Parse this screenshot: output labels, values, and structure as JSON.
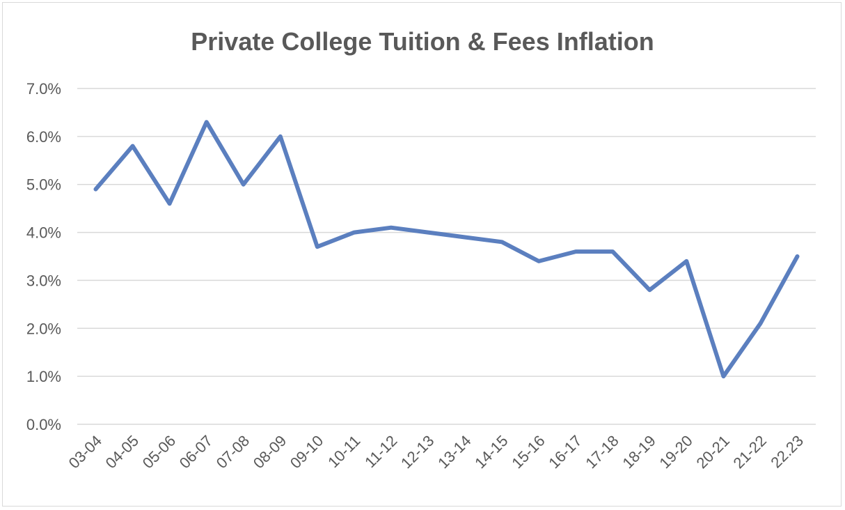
{
  "chart_data": {
    "type": "line",
    "title": "Private College Tuition & Fees Inflation",
    "xlabel": "",
    "ylabel": "",
    "categories": [
      "03-04",
      "04-05",
      "05-06",
      "06-07",
      "07-08",
      "08-09",
      "09-10",
      "10-11",
      "11-12",
      "12-13",
      "13-14",
      "14-15",
      "15-16",
      "16-17",
      "17-18",
      "18-19",
      "19-20",
      "20-21",
      "21-22",
      "22.23"
    ],
    "series": [
      {
        "values": [
          4.9,
          5.8,
          4.6,
          6.3,
          5.0,
          6.0,
          3.7,
          4.0,
          4.1,
          4.0,
          3.9,
          3.8,
          3.4,
          3.6,
          3.6,
          2.8,
          3.4,
          1.0,
          2.1,
          3.5
        ],
        "color": "#5b7fbf"
      }
    ],
    "ylim": [
      0,
      7
    ],
    "y_ticks": [
      "0.0%",
      "1.0%",
      "2.0%",
      "3.0%",
      "4.0%",
      "5.0%",
      "6.0%",
      "7.0%"
    ],
    "grid": true,
    "legend": "none"
  }
}
